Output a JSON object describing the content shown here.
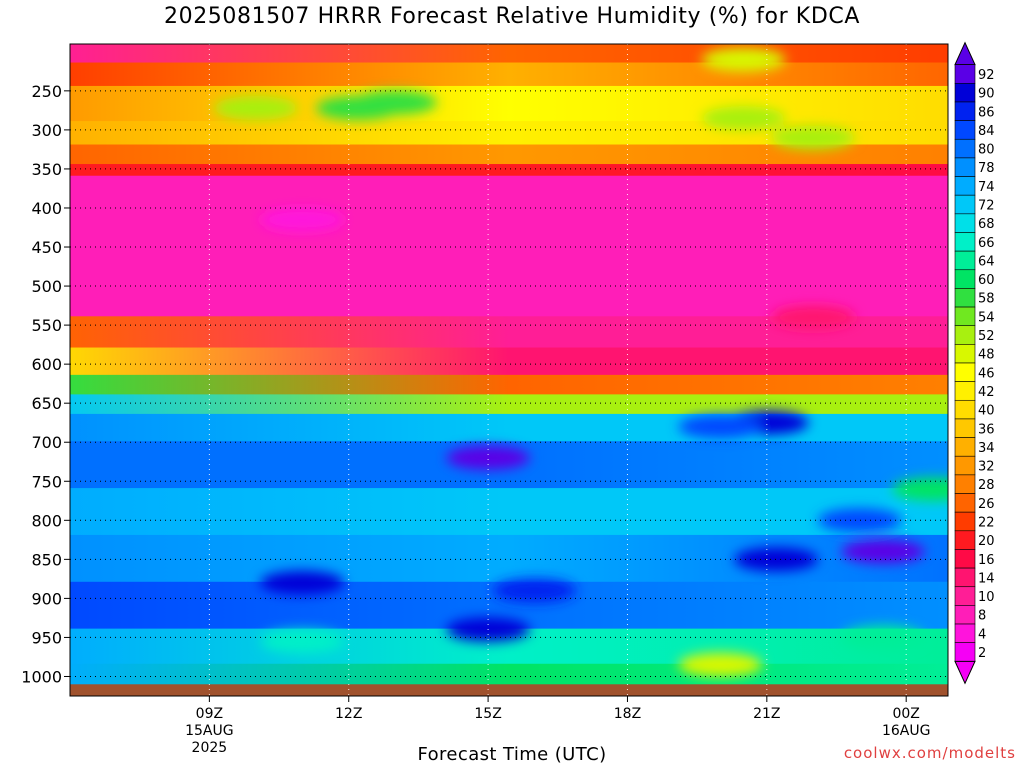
{
  "chart_data": {
    "type": "heatmap",
    "title": "2025081507 HRRR Forecast Relative Humidity (%) for KDCA",
    "xlabel": "Forecast Time (UTC)",
    "credit": "coolwx.com/modelts",
    "y_axis": {
      "variable": "pressure (hPa)",
      "inverted": true,
      "range": [
        1025,
        190
      ],
      "ticks": [
        250,
        300,
        350,
        400,
        450,
        500,
        550,
        600,
        650,
        700,
        750,
        800,
        850,
        900,
        950,
        1000
      ]
    },
    "x_axis": {
      "range_hours_utc": [
        6,
        24.9
      ],
      "ticks": [
        {
          "hour": 9,
          "lines": [
            "09Z",
            "15AUG",
            "2025"
          ]
        },
        {
          "hour": 12,
          "lines": [
            "12Z"
          ]
        },
        {
          "hour": 15,
          "lines": [
            "15Z"
          ]
        },
        {
          "hour": 18,
          "lines": [
            "18Z"
          ]
        },
        {
          "hour": 21,
          "lines": [
            "21Z"
          ]
        },
        {
          "hour": 24,
          "lines": [
            "00Z",
            "16AUG"
          ]
        }
      ]
    },
    "grid": true,
    "ground_color": "#a0522d",
    "colorbar": {
      "placement": "right",
      "extend": "both",
      "labels": [
        92,
        90,
        86,
        84,
        80,
        78,
        74,
        72,
        68,
        66,
        64,
        60,
        58,
        54,
        52,
        48,
        46,
        42,
        40,
        36,
        34,
        32,
        28,
        26,
        22,
        20,
        16,
        14,
        10,
        8,
        4,
        2
      ],
      "colors": [
        "#5a00e6",
        "#0000d8",
        "#0022f0",
        "#0048ff",
        "#0070ff",
        "#0090ff",
        "#00acff",
        "#00c8f8",
        "#00e0e8",
        "#00f0c8",
        "#00ee98",
        "#00e464",
        "#30e040",
        "#70e820",
        "#a8f010",
        "#d8f800",
        "#ffff00",
        "#fff000",
        "#ffdc00",
        "#ffc800",
        "#ffb000",
        "#ff9800",
        "#ff8000",
        "#ff6400",
        "#ff3c00",
        "#ff1a20",
        "#ff0a46",
        "#ff1470",
        "#ff1e96",
        "#ff1eb8",
        "#ff14dc",
        "#f500f5"
      ]
    },
    "bands": [
      {
        "p_top": 190,
        "p_bot": 215,
        "rh_left": 10,
        "rh_mid": 26,
        "rh_right": 22
      },
      {
        "p_top": 215,
        "p_bot": 245,
        "rh_left": 22,
        "rh_mid": 34,
        "rh_right": 26
      },
      {
        "p_top": 245,
        "p_bot": 290,
        "rh_left": 32,
        "rh_mid": 44,
        "rh_right": 38
      },
      {
        "p_top": 290,
        "p_bot": 320,
        "rh_left": 34,
        "rh_mid": 42,
        "rh_right": 40
      },
      {
        "p_top": 320,
        "p_bot": 345,
        "rh_left": 26,
        "rh_mid": 30,
        "rh_right": 28
      },
      {
        "p_top": 345,
        "p_bot": 360,
        "rh_left": 18,
        "rh_mid": 18,
        "rh_right": 16
      },
      {
        "p_top": 360,
        "p_bot": 540,
        "rh_left": 8,
        "rh_mid": 8,
        "rh_right": 8
      },
      {
        "p_top": 540,
        "p_bot": 580,
        "rh_left": 24,
        "rh_mid": 10,
        "rh_right": 10
      },
      {
        "p_top": 580,
        "p_bot": 615,
        "rh_left": 40,
        "rh_mid": 12,
        "rh_right": 14
      },
      {
        "p_top": 615,
        "p_bot": 640,
        "rh_left": 58,
        "rh_mid": 24,
        "rh_right": 28
      },
      {
        "p_top": 640,
        "p_bot": 665,
        "rh_left": 72,
        "rh_mid": 50,
        "rh_right": 52
      },
      {
        "p_top": 665,
        "p_bot": 700,
        "rh_left": 76,
        "rh_mid": 72,
        "rh_right": 70
      },
      {
        "p_top": 700,
        "p_bot": 760,
        "rh_left": 80,
        "rh_mid": 80,
        "rh_right": 78
      },
      {
        "p_top": 760,
        "p_bot": 820,
        "rh_left": 74,
        "rh_mid": 72,
        "rh_right": 70
      },
      {
        "p_top": 820,
        "p_bot": 880,
        "rh_left": 78,
        "rh_mid": 74,
        "rh_right": 80
      },
      {
        "p_top": 880,
        "p_bot": 940,
        "rh_left": 84,
        "rh_mid": 80,
        "rh_right": 76
      },
      {
        "p_top": 940,
        "p_bot": 985,
        "rh_left": 74,
        "rh_mid": 66,
        "rh_right": 62
      },
      {
        "p_top": 985,
        "p_bot": 1010,
        "rh_left": 74,
        "rh_mid": 60,
        "rh_right": 64
      }
    ],
    "blobs": [
      {
        "hour": 10,
        "p": 272,
        "rh": 52
      },
      {
        "hour": 12.2,
        "p": 272,
        "rh": 56
      },
      {
        "hour": 13,
        "p": 265,
        "rh": 58
      },
      {
        "hour": 20.5,
        "p": 210,
        "rh": 48
      },
      {
        "hour": 20.5,
        "p": 285,
        "rh": 50
      },
      {
        "hour": 22,
        "p": 310,
        "rh": 52
      },
      {
        "hour": 11,
        "p": 415,
        "rh": 4
      },
      {
        "hour": 22,
        "p": 540,
        "rh": 12
      },
      {
        "hour": 21,
        "p": 675,
        "rh": 90
      },
      {
        "hour": 20,
        "p": 680,
        "rh": 84
      },
      {
        "hour": 15,
        "p": 720,
        "rh": 92
      },
      {
        "hour": 23,
        "p": 800,
        "rh": 84
      },
      {
        "hour": 23.5,
        "p": 840,
        "rh": 92
      },
      {
        "hour": 21.2,
        "p": 850,
        "rh": 90
      },
      {
        "hour": 11,
        "p": 880,
        "rh": 90
      },
      {
        "hour": 15,
        "p": 940,
        "rh": 90
      },
      {
        "hour": 16,
        "p": 890,
        "rh": 86
      },
      {
        "hour": 11,
        "p": 955,
        "rh": 66
      },
      {
        "hour": 20,
        "p": 985,
        "rh": 48
      },
      {
        "hour": 23.5,
        "p": 950,
        "rh": 64
      },
      {
        "hour": 24.6,
        "p": 760,
        "rh": 60
      }
    ]
  }
}
